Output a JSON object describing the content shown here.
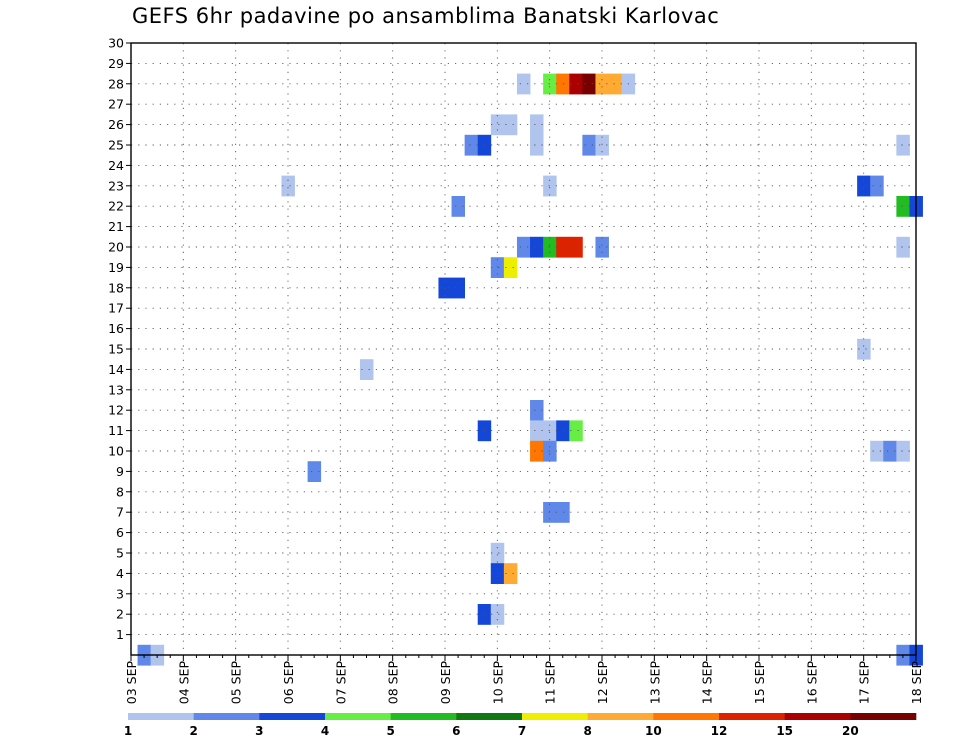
{
  "chart_data": {
    "type": "heatmap",
    "title": "GEFS 6hr padavine po ansamblima Banatski Karlovac",
    "xlabel": "",
    "ylabel": "",
    "x_tick_labels": [
      "03 SEP",
      "04 SEP",
      "05 SEP",
      "06 SEP",
      "07 SEP",
      "08 SEP",
      "09 SEP",
      "10 SEP",
      "11 SEP",
      "12 SEP",
      "13 SEP",
      "14 SEP",
      "15 SEP",
      "16 SEP",
      "17 SEP",
      "18 SEP"
    ],
    "y_tick_labels": [
      "1",
      "2",
      "3",
      "4",
      "5",
      "6",
      "7",
      "8",
      "9",
      "10",
      "11",
      "12",
      "13",
      "14",
      "15",
      "16",
      "17",
      "18",
      "19",
      "20",
      "21",
      "22",
      "23",
      "24",
      "25",
      "26",
      "27",
      "28",
      "29",
      "30"
    ],
    "x_range_steps_6h": [
      0,
      60
    ],
    "y_range_members": [
      0,
      30
    ],
    "grid": true,
    "legend_placement": "bottom",
    "legend": {
      "thresholds": [
        "1",
        "2",
        "3",
        "4",
        "5",
        "6",
        "7",
        "8",
        "10",
        "12",
        "15",
        "20"
      ],
      "colors": [
        "#b0c4ee",
        "#6088e8",
        "#1446d8",
        "#66ee44",
        "#22bb22",
        "#117711",
        "#eeee00",
        "#ffaa33",
        "#ff7700",
        "#dd2200",
        "#aa0000",
        "#770000"
      ]
    },
    "cells": [
      {
        "t": 30,
        "m": 28,
        "c": 0
      },
      {
        "t": 32,
        "m": 28,
        "c": 3
      },
      {
        "t": 33,
        "m": 28,
        "c": 8
      },
      {
        "t": 34,
        "m": 28,
        "c": 10
      },
      {
        "t": 35,
        "m": 28,
        "c": 11
      },
      {
        "t": 36,
        "m": 28,
        "c": 7
      },
      {
        "t": 37,
        "m": 28,
        "c": 7
      },
      {
        "t": 38,
        "m": 28,
        "c": 0
      },
      {
        "t": 28,
        "m": 26,
        "c": 0
      },
      {
        "t": 29,
        "m": 26,
        "c": 0
      },
      {
        "t": 31,
        "m": 26,
        "c": 0
      },
      {
        "t": 26,
        "m": 25,
        "c": 1
      },
      {
        "t": 27,
        "m": 25,
        "c": 2
      },
      {
        "t": 31,
        "m": 25,
        "c": 0
      },
      {
        "t": 35,
        "m": 25,
        "c": 1
      },
      {
        "t": 36,
        "m": 25,
        "c": 0
      },
      {
        "t": 59,
        "m": 25,
        "c": 0
      },
      {
        "t": 32,
        "m": 23,
        "c": 0
      },
      {
        "t": 12,
        "m": 23,
        "c": 0
      },
      {
        "t": 56,
        "m": 23,
        "c": 2
      },
      {
        "t": 57,
        "m": 23,
        "c": 1
      },
      {
        "t": 25,
        "m": 22,
        "c": 1
      },
      {
        "t": 59,
        "m": 22,
        "c": 4
      },
      {
        "t": 60,
        "m": 22,
        "c": 2
      },
      {
        "t": 30,
        "m": 20,
        "c": 1
      },
      {
        "t": 31,
        "m": 20,
        "c": 2
      },
      {
        "t": 32,
        "m": 20,
        "c": 4
      },
      {
        "t": 33,
        "m": 20,
        "c": 9
      },
      {
        "t": 34,
        "m": 20,
        "c": 9
      },
      {
        "t": 36,
        "m": 20,
        "c": 1
      },
      {
        "t": 59,
        "m": 20,
        "c": 0
      },
      {
        "t": 28,
        "m": 19,
        "c": 1
      },
      {
        "t": 29,
        "m": 19,
        "c": 6
      },
      {
        "t": 24,
        "m": 18,
        "c": 2
      },
      {
        "t": 25,
        "m": 18,
        "c": 2
      },
      {
        "t": 56,
        "m": 15,
        "c": 0
      },
      {
        "t": 18,
        "m": 14,
        "c": 0
      },
      {
        "t": 31,
        "m": 12,
        "c": 1
      },
      {
        "t": 27,
        "m": 11,
        "c": 2
      },
      {
        "t": 31,
        "m": 11,
        "c": 0
      },
      {
        "t": 32,
        "m": 11,
        "c": 0
      },
      {
        "t": 33,
        "m": 11,
        "c": 2
      },
      {
        "t": 34,
        "m": 11,
        "c": 3
      },
      {
        "t": 31,
        "m": 10,
        "c": 8
      },
      {
        "t": 32,
        "m": 10,
        "c": 1
      },
      {
        "t": 57,
        "m": 10,
        "c": 0
      },
      {
        "t": 58,
        "m": 10,
        "c": 1
      },
      {
        "t": 59,
        "m": 10,
        "c": 0
      },
      {
        "t": 14,
        "m": 9,
        "c": 1
      },
      {
        "t": 32,
        "m": 7,
        "c": 1
      },
      {
        "t": 33,
        "m": 7,
        "c": 1
      },
      {
        "t": 28,
        "m": 5,
        "c": 0
      },
      {
        "t": 28,
        "m": 4,
        "c": 2
      },
      {
        "t": 29,
        "m": 4,
        "c": 7
      },
      {
        "t": 27,
        "m": 2,
        "c": 2
      },
      {
        "t": 28,
        "m": 2,
        "c": 0
      },
      {
        "t": 1,
        "m": 0,
        "c": 1
      },
      {
        "t": 2,
        "m": 0,
        "c": 0
      },
      {
        "t": 59,
        "m": 0,
        "c": 1
      },
      {
        "t": 60,
        "m": 0,
        "c": 2
      }
    ]
  }
}
